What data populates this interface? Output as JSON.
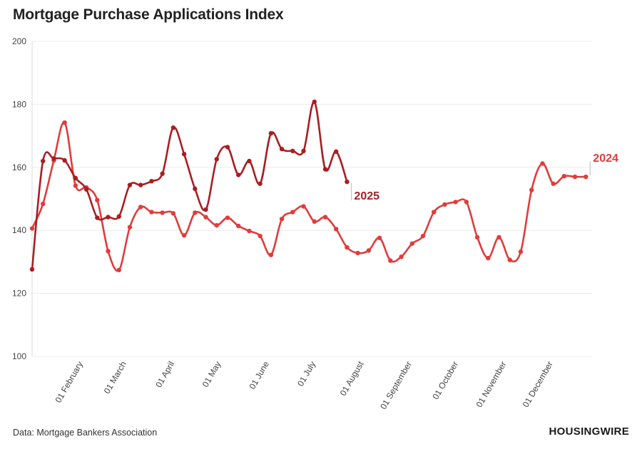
{
  "title": "Mortgage Purchase Applications Index",
  "source": "Data: Mortgage Bankers Association",
  "brand": "HOUSINGWIRE",
  "chart_data": {
    "type": "line",
    "title": "Mortgage Purchase Applications Index",
    "xlabel": "",
    "ylabel": "",
    "ylim": [
      100,
      200
    ],
    "yticks": [
      100,
      120,
      140,
      160,
      180,
      200
    ],
    "xlim": [
      "2025-01-01",
      "2025-12-28"
    ],
    "xticks": [
      {
        "date": "2025-02-01",
        "label": "01 February"
      },
      {
        "date": "2025-03-01",
        "label": "01 March"
      },
      {
        "date": "2025-04-01",
        "label": "01 April"
      },
      {
        "date": "2025-05-01",
        "label": "01 May"
      },
      {
        "date": "2025-06-01",
        "label": "01 June"
      },
      {
        "date": "2025-07-01",
        "label": "01 July"
      },
      {
        "date": "2025-08-01",
        "label": "01 August"
      },
      {
        "date": "2025-09-01",
        "label": "01 September"
      },
      {
        "date": "2025-10-01",
        "label": "01 October"
      },
      {
        "date": "2025-11-01",
        "label": "01 November"
      },
      {
        "date": "2025-12-01",
        "label": "01 December"
      }
    ],
    "grid": true,
    "legend": "direct-labels",
    "series": [
      {
        "name": "2024",
        "color": "#e03c3c",
        "x": [
          "2025-01-01",
          "2025-01-08",
          "2025-01-15",
          "2025-01-22",
          "2025-01-29",
          "2025-02-05",
          "2025-02-12",
          "2025-02-19",
          "2025-02-26",
          "2025-03-05",
          "2025-03-12",
          "2025-03-19",
          "2025-03-26",
          "2025-04-02",
          "2025-04-09",
          "2025-04-16",
          "2025-04-23",
          "2025-04-30",
          "2025-05-07",
          "2025-05-14",
          "2025-05-21",
          "2025-05-28",
          "2025-06-04",
          "2025-06-11",
          "2025-06-18",
          "2025-06-25",
          "2025-07-02",
          "2025-07-09",
          "2025-07-16",
          "2025-07-23",
          "2025-07-30",
          "2025-08-06",
          "2025-08-13",
          "2025-08-20",
          "2025-08-27",
          "2025-09-03",
          "2025-09-10",
          "2025-09-17",
          "2025-09-24",
          "2025-10-01",
          "2025-10-08",
          "2025-10-15",
          "2025-10-22",
          "2025-10-29",
          "2025-11-05",
          "2025-11-12",
          "2025-11-19",
          "2025-11-26",
          "2025-12-03",
          "2025-12-10",
          "2025-12-17",
          "2025-12-24"
        ],
        "y": [
          140.6,
          148.4,
          162.2,
          174.2,
          154.2,
          153.6,
          149.6,
          133.4,
          127.4,
          141.0,
          147.4,
          145.8,
          145.6,
          145.4,
          138.4,
          145.6,
          144.2,
          141.6,
          144.0,
          141.4,
          139.8,
          138.2,
          132.2,
          143.6,
          145.8,
          147.6,
          142.8,
          144.2,
          140.4,
          134.6,
          132.8,
          133.6,
          137.6,
          130.4,
          131.6,
          135.8,
          138.2,
          145.8,
          148.2,
          149.0,
          149.0,
          137.8,
          131.2,
          137.8,
          130.6,
          133.2,
          152.8,
          161.2,
          154.8,
          157.2,
          157.0,
          157.0
        ]
      },
      {
        "name": "2025",
        "color": "#a81e23",
        "x": [
          "2025-01-01",
          "2025-01-08",
          "2025-01-15",
          "2025-01-22",
          "2025-01-29",
          "2025-02-05",
          "2025-02-12",
          "2025-02-19",
          "2025-02-26",
          "2025-03-05",
          "2025-03-12",
          "2025-03-19",
          "2025-03-26",
          "2025-04-02",
          "2025-04-09",
          "2025-04-16",
          "2025-04-23",
          "2025-04-30",
          "2025-05-07",
          "2025-05-14",
          "2025-05-21",
          "2025-05-28",
          "2025-06-04",
          "2025-06-11",
          "2025-06-18",
          "2025-06-25",
          "2025-07-02",
          "2025-07-09",
          "2025-07-16",
          "2025-07-23",
          "2025-07-30"
        ],
        "y": [
          127.6,
          162.0,
          162.8,
          162.2,
          156.6,
          153.0,
          144.0,
          144.2,
          144.4,
          154.4,
          154.4,
          155.6,
          158.0,
          172.6,
          164.2,
          153.2,
          146.6,
          162.6,
          166.4,
          157.6,
          162.0,
          154.8,
          170.8,
          165.8,
          165.2,
          165.2,
          180.8,
          159.4,
          165.0,
          155.4,
          null
        ]
      }
    ]
  }
}
